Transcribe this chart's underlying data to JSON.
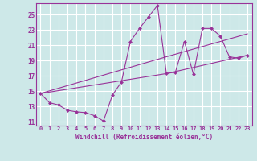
{
  "xlabel": "Windchill (Refroidissement éolien,°C)",
  "bg_color": "#cde8e8",
  "line_color": "#993399",
  "grid_color": "#ffffff",
  "series": [
    [
      0,
      14.7
    ],
    [
      1,
      13.5
    ],
    [
      2,
      13.2
    ],
    [
      3,
      12.5
    ],
    [
      4,
      12.3
    ],
    [
      5,
      12.2
    ],
    [
      6,
      11.8
    ],
    [
      7,
      11.1
    ],
    [
      8,
      14.5
    ],
    [
      9,
      16.2
    ],
    [
      10,
      21.5
    ],
    [
      11,
      23.2
    ],
    [
      12,
      24.7
    ],
    [
      13,
      26.2
    ],
    [
      14,
      17.3
    ],
    [
      15,
      17.5
    ],
    [
      16,
      21.5
    ],
    [
      17,
      17.2
    ],
    [
      18,
      23.2
    ],
    [
      19,
      23.2
    ],
    [
      20,
      22.2
    ],
    [
      21,
      19.5
    ],
    [
      22,
      19.3
    ],
    [
      23,
      19.7
    ]
  ],
  "line2": [
    [
      0,
      14.7
    ],
    [
      14,
      19.5
    ],
    [
      23,
      22.5
    ]
  ],
  "line3": [
    [
      0,
      14.7
    ],
    [
      14,
      17.3
    ],
    [
      23,
      19.7
    ]
  ],
  "xlim": [
    -0.5,
    23.5
  ],
  "ylim": [
    10.5,
    26.5
  ],
  "xticks": [
    0,
    1,
    2,
    3,
    4,
    5,
    6,
    7,
    8,
    9,
    10,
    11,
    12,
    13,
    14,
    15,
    16,
    17,
    18,
    19,
    20,
    21,
    22,
    23
  ],
  "yticks": [
    11,
    13,
    15,
    17,
    19,
    21,
    23,
    25
  ]
}
